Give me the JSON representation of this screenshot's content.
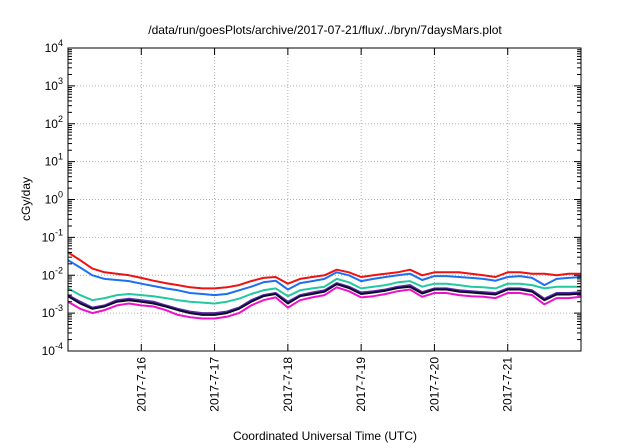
{
  "chart_data": {
    "type": "line",
    "title": "/data/run/goesPlots/archive/2017-07-21/flux/../bryn/7daysMars.plot",
    "xlabel": "Coordinated Universal Time (UTC)",
    "ylabel": "cGy/day",
    "yscale": "log",
    "ylim": [
      0.0001,
      10000
    ],
    "y_ticks": [
      {
        "base": "10",
        "exp": "-4"
      },
      {
        "base": "10",
        "exp": "-3"
      },
      {
        "base": "10",
        "exp": "-2"
      },
      {
        "base": "10",
        "exp": "-1"
      },
      {
        "base": "10",
        "exp": "0"
      },
      {
        "base": "10",
        "exp": "1"
      },
      {
        "base": "10",
        "exp": "2"
      },
      {
        "base": "10",
        "exp": "3"
      },
      {
        "base": "10",
        "exp": "4"
      }
    ],
    "xlim": [
      "2017-07-15T00:00",
      "2017-07-22T00:00"
    ],
    "x_ticks": [
      "2017-7-16",
      "2017-7-17",
      "2017-7-18",
      "2017-7-19",
      "2017-7-20",
      "2017-7-21"
    ],
    "grid": true,
    "x": [
      "2017-07-15T00:00",
      "2017-07-15T04:00",
      "2017-07-15T08:00",
      "2017-07-15T12:00",
      "2017-07-15T16:00",
      "2017-07-15T20:00",
      "2017-07-16T00:00",
      "2017-07-16T04:00",
      "2017-07-16T08:00",
      "2017-07-16T12:00",
      "2017-07-16T16:00",
      "2017-07-16T20:00",
      "2017-07-17T00:00",
      "2017-07-17T04:00",
      "2017-07-17T08:00",
      "2017-07-17T12:00",
      "2017-07-17T16:00",
      "2017-07-17T20:00",
      "2017-07-18T00:00",
      "2017-07-18T04:00",
      "2017-07-18T08:00",
      "2017-07-18T12:00",
      "2017-07-18T16:00",
      "2017-07-18T20:00",
      "2017-07-19T00:00",
      "2017-07-19T04:00",
      "2017-07-19T08:00",
      "2017-07-19T12:00",
      "2017-07-19T16:00",
      "2017-07-19T20:00",
      "2017-07-20T00:00",
      "2017-07-20T04:00",
      "2017-07-20T08:00",
      "2017-07-20T12:00",
      "2017-07-20T16:00",
      "2017-07-20T20:00",
      "2017-07-21T00:00",
      "2017-07-21T04:00",
      "2017-07-21T08:00",
      "2017-07-21T12:00",
      "2017-07-21T16:00",
      "2017-07-21T20:00",
      "2017-07-22T00:00"
    ],
    "series": [
      {
        "color": "#ee1111",
        "values": [
          0.04,
          0.025,
          0.015,
          0.012,
          0.011,
          0.01,
          0.0085,
          0.0072,
          0.0062,
          0.0055,
          0.0048,
          0.0045,
          0.0045,
          0.0048,
          0.0055,
          0.007,
          0.0085,
          0.009,
          0.006,
          0.008,
          0.009,
          0.01,
          0.014,
          0.012,
          0.009,
          0.01,
          0.011,
          0.012,
          0.014,
          0.01,
          0.012,
          0.012,
          0.012,
          0.011,
          0.01,
          0.009,
          0.012,
          0.012,
          0.011,
          0.011,
          0.01,
          0.011,
          0.011
        ]
      },
      {
        "color": "#1e6ff0",
        "values": [
          0.025,
          0.016,
          0.01,
          0.008,
          0.0075,
          0.007,
          0.006,
          0.0052,
          0.0045,
          0.004,
          0.0034,
          0.0032,
          0.003,
          0.0032,
          0.004,
          0.005,
          0.0065,
          0.0072,
          0.0042,
          0.0062,
          0.007,
          0.008,
          0.012,
          0.01,
          0.007,
          0.008,
          0.009,
          0.01,
          0.011,
          0.0075,
          0.0095,
          0.0095,
          0.009,
          0.0085,
          0.008,
          0.0072,
          0.009,
          0.0095,
          0.0085,
          0.0055,
          0.008,
          0.0085,
          0.009
        ]
      },
      {
        "color": "#22c9a0",
        "values": [
          0.0045,
          0.003,
          0.0022,
          0.0025,
          0.003,
          0.0032,
          0.003,
          0.0028,
          0.0025,
          0.0022,
          0.002,
          0.0019,
          0.0018,
          0.002,
          0.0024,
          0.0032,
          0.004,
          0.0045,
          0.0028,
          0.004,
          0.0045,
          0.005,
          0.008,
          0.0065,
          0.0045,
          0.005,
          0.0055,
          0.0065,
          0.007,
          0.005,
          0.006,
          0.006,
          0.0055,
          0.005,
          0.0048,
          0.0045,
          0.006,
          0.006,
          0.0055,
          0.0045,
          0.005,
          0.005,
          0.005
        ]
      },
      {
        "color": "#5a2aa8",
        "values": [
          0.003,
          0.002,
          0.0014,
          0.0016,
          0.0022,
          0.0024,
          0.0022,
          0.002,
          0.0016,
          0.0013,
          0.0011,
          0.001,
          0.001,
          0.0011,
          0.0014,
          0.0022,
          0.003,
          0.0034,
          0.002,
          0.003,
          0.0035,
          0.004,
          0.0062,
          0.005,
          0.0035,
          0.0038,
          0.0042,
          0.005,
          0.0055,
          0.0036,
          0.0045,
          0.0045,
          0.004,
          0.0038,
          0.0036,
          0.0034,
          0.0045,
          0.0045,
          0.004,
          0.0024,
          0.0034,
          0.0034,
          0.0036
        ]
      },
      {
        "color": "#0b0b2a",
        "values": [
          0.0028,
          0.0018,
          0.0013,
          0.0015,
          0.002,
          0.0022,
          0.002,
          0.0018,
          0.0015,
          0.0012,
          0.001,
          0.0009,
          0.0009,
          0.001,
          0.0013,
          0.002,
          0.0028,
          0.0032,
          0.0018,
          0.0028,
          0.0032,
          0.0037,
          0.0058,
          0.0046,
          0.0032,
          0.0035,
          0.0039,
          0.0046,
          0.005,
          0.0033,
          0.0042,
          0.0042,
          0.0037,
          0.0035,
          0.0033,
          0.0031,
          0.0042,
          0.0042,
          0.0037,
          0.0022,
          0.0031,
          0.0031,
          0.0033
        ]
      },
      {
        "color": "#ee11cc",
        "values": [
          0.002,
          0.0013,
          0.001,
          0.0012,
          0.0016,
          0.0018,
          0.0016,
          0.0015,
          0.0012,
          0.0009,
          0.00078,
          0.00072,
          0.00072,
          0.0008,
          0.001,
          0.0016,
          0.0022,
          0.0026,
          0.0014,
          0.0022,
          0.0026,
          0.003,
          0.0048,
          0.0038,
          0.0026,
          0.0028,
          0.0032,
          0.0038,
          0.0042,
          0.0027,
          0.0034,
          0.0034,
          0.003,
          0.0028,
          0.0027,
          0.0025,
          0.0034,
          0.0034,
          0.003,
          0.0017,
          0.0025,
          0.0025,
          0.0027
        ]
      }
    ]
  }
}
